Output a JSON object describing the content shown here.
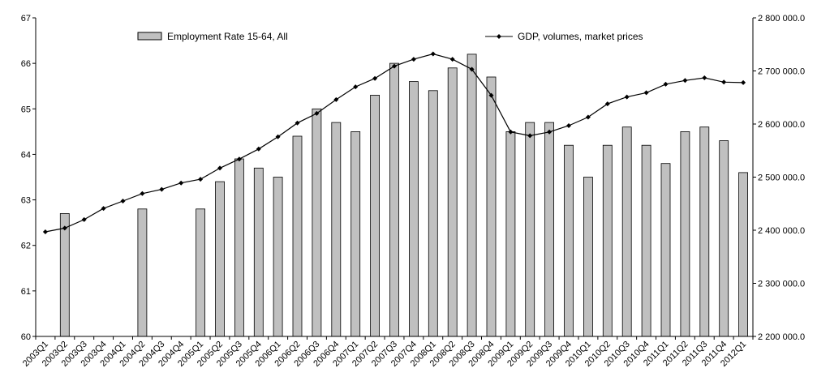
{
  "chart_data": {
    "type": "bar",
    "categories": [
      "2003Q1",
      "2003Q2",
      "2003Q3",
      "2003Q4",
      "2004Q1",
      "2004Q2",
      "2004Q3",
      "2004Q4",
      "2005Q1",
      "2005Q2",
      "2005Q3",
      "2005Q4",
      "2006Q1",
      "2006Q2",
      "2006Q3",
      "2006Q4",
      "2007Q1",
      "2007Q2",
      "2007Q3",
      "2007Q4",
      "2008Q1",
      "2008Q2",
      "2008Q3",
      "2008Q4",
      "2009Q1",
      "2009Q2",
      "2009Q3",
      "2009Q4",
      "2010Q1",
      "2010Q2",
      "2010Q3",
      "2010Q4",
      "2011Q1",
      "2011Q2",
      "2011Q3",
      "2011Q4",
      "2012Q1"
    ],
    "series": [
      {
        "name": "Employment Rate 15-64, All",
        "type": "bar",
        "axis": "left",
        "color": "#c0c0c0",
        "values": [
          null,
          62.7,
          null,
          null,
          null,
          62.8,
          null,
          null,
          62.8,
          63.4,
          63.9,
          63.7,
          63.5,
          64.4,
          65.0,
          64.7,
          64.5,
          65.3,
          66.0,
          65.6,
          65.4,
          65.9,
          66.2,
          65.7,
          64.5,
          64.7,
          64.7,
          64.2,
          63.5,
          64.2,
          64.6,
          64.2,
          63.8,
          64.5,
          64.6,
          64.3,
          63.6
        ]
      },
      {
        "name": "GDP, volumes, market prices",
        "type": "line",
        "axis": "right",
        "color": "#000000",
        "values": [
          2397000,
          2404000,
          2420000,
          2441000,
          2455000,
          2469000,
          2477000,
          2489000,
          2496000,
          2517000,
          2534000,
          2553000,
          2576000,
          2602000,
          2620000,
          2646000,
          2670000,
          2686000,
          2709000,
          2722000,
          2732000,
          2722000,
          2703000,
          2654000,
          2585000,
          2578000,
          2585000,
          2597000,
          2613000,
          2638000,
          2651000,
          2659000,
          2675000,
          2682000,
          2687000,
          2679000,
          2678000
        ]
      }
    ],
    "y_left": {
      "min": 60,
      "max": 67,
      "ticks": [
        "60",
        "61",
        "62",
        "63",
        "64",
        "65",
        "66",
        "67"
      ]
    },
    "y_right": {
      "min": 2200000,
      "max": 2800000,
      "ticks": [
        "2 200 000.0",
        "2 300 000.0",
        "2 400 000.0",
        "2 500 000.0",
        "2 600 000.0",
        "2 700 000.0",
        "2 800 000.0"
      ]
    },
    "legend": [
      {
        "label": "Employment Rate 15-64, All",
        "marker": "bar"
      },
      {
        "label": "GDP, volumes, market prices",
        "marker": "line-diamond"
      }
    ],
    "legend_position": "top",
    "grid": false
  }
}
